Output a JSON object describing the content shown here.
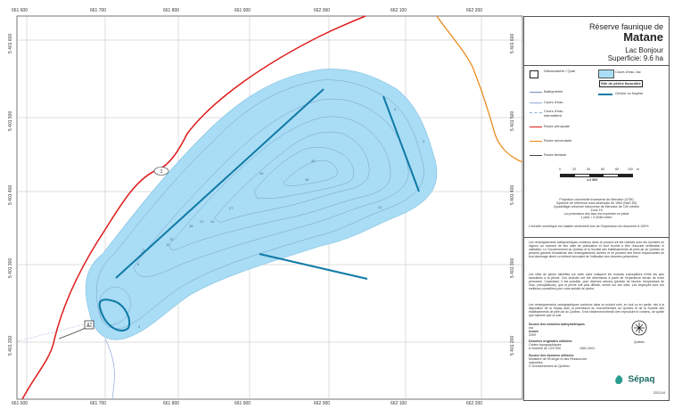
{
  "title": {
    "line1": "Réserve faunique de",
    "name": "Matane",
    "lake": "Lac Bonjour",
    "area_label": "Superficie:",
    "area_value": "9.6 ha"
  },
  "grid": {
    "eastings": [
      "661 600",
      "661 700",
      "661 800",
      "661 900",
      "662 000",
      "662 100",
      "662 200"
    ],
    "northings": [
      "5 401 600",
      "5 401 500",
      "5 401 400",
      "5 401 300",
      "5 401 200"
    ]
  },
  "map": {
    "road_number": "1",
    "depths": [
      "36",
      "33",
      "30",
      "27",
      "24",
      "21",
      "18",
      "15",
      "12",
      "9",
      "6",
      "3",
      "12",
      "6",
      "3",
      "3"
    ],
    "colors": {
      "water": "#a9dcf5",
      "spawn": "#0e7aa6",
      "primary_road": "#e01b1b",
      "secondary_road": "#e8850f",
      "tertiary_road": "#444444",
      "stream": "#8fa8d8",
      "contour": "#6b8fb5"
    }
  },
  "legend": {
    "dock": "Débarcadère / Quai",
    "bathymetry": "Bathymétrie",
    "stream": "Cours d'eau",
    "stream_intermittent": "Cours d'eau intermittent",
    "primary_road": "Route principale",
    "secondary_road": "Route secondaire",
    "tertiary_road": "Route tertiaire",
    "lake": "Cours d'eau, lac",
    "fishable": "Site de pêche favorable",
    "spawn": "Ombre ou frayère"
  },
  "scale": {
    "ticks": [
      "0",
      "20",
      "40",
      "60",
      "80",
      "100"
    ],
    "unit": "m",
    "ratio": "1:2 500"
  },
  "projection": [
    "Projection universelle transverse de Mercator (UTM)",
    "Système de référence nord-américain de 1983 (NAD 83)",
    "Quadrillage universel transverse de Mercator de 100 mètres",
    "Zone 19",
    "La profondeur des lacs est exprimée en pieds",
    "1 pied = 0,3048 mètre"
  ],
  "scale_note": "L'échelle numérique est valable seulement lors de l'impression du document à 100%",
  "paragraphs": [
    "Les renseignements bathymétriques contenus dans ce produit ont été réalisés avec les données en vigueur au moment de leur date de publication et sont fournis à titre d'aucune vérification ni validation. Le Gouvernement du Québec et la Société des établissements de plein air du Québec ne peuvent garantir l'exactitude des renseignements donnés et ne peuvent être tenus responsables de tout dommage direct ou indirect découlant de l'utilisation des données présentées.",
    "Les sites de pêche identifiés sur cette carte indiquent les endroits susceptibles d'être les plus favorables à la pêche. Ces endroits ont été déterminés à partir de l'expérience terrain de notre personnel. Cependant, il est possible, pour diverses raisons (période de l'année, température de l'eau, précipitations), que la pêche soit plus difficile, même sur ces sites. Les employés sont vos meilleurs conseillers pour votre activité de pêche.",
    "Les renseignements cartographiques contenus dans ce produit sont, en tout ou en partie, mis à la disposition de la Sépaq avec la permission du Gouvernement du Québec et de la Société des établissements de plein air du Québec. Il est strictement interdit d'en reproduire le contenu, de quelle que manière que ce soit."
  ],
  "sources": {
    "bathy_title": "Source des données bathymétriques",
    "bathy_value": "n/a",
    "year_title": "Année",
    "year_value": "2009",
    "orig_title": "Données originales utilisées",
    "orig_line1": "Cartes topographiques",
    "orig_line2": "à l'échelle de 1/20 000",
    "orig_years": "1981-2001",
    "source_title": "Source des données utilisées",
    "source_line1": "Ministère de l'Énergie et des Ressources naturelles",
    "source_line2": "© Gouvernement du Québec"
  },
  "logos": {
    "gov": "Québec",
    "sepaq": "Sépaq"
  },
  "date": "2023-04"
}
